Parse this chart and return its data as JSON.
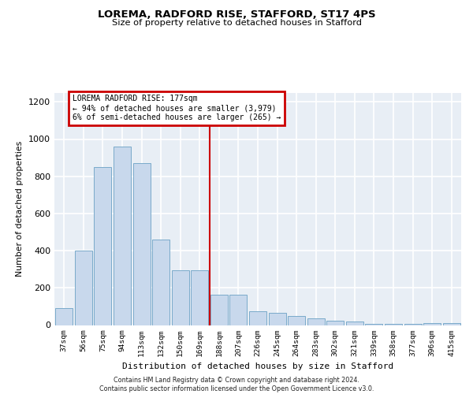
{
  "title": "LOREMA, RADFORD RISE, STAFFORD, ST17 4PS",
  "subtitle": "Size of property relative to detached houses in Stafford",
  "xlabel": "Distribution of detached houses by size in Stafford",
  "ylabel": "Number of detached properties",
  "categories": [
    "37sqm",
    "56sqm",
    "75sqm",
    "94sqm",
    "113sqm",
    "132sqm",
    "150sqm",
    "169sqm",
    "188sqm",
    "207sqm",
    "226sqm",
    "245sqm",
    "264sqm",
    "283sqm",
    "302sqm",
    "321sqm",
    "339sqm",
    "358sqm",
    "377sqm",
    "396sqm",
    "415sqm"
  ],
  "values": [
    90,
    400,
    850,
    960,
    870,
    460,
    295,
    295,
    165,
    165,
    75,
    65,
    50,
    35,
    25,
    18,
    5,
    5,
    5,
    10,
    10
  ],
  "bar_color": "#c8d8ec",
  "bar_edge_color": "#7aaaca",
  "vline_position": 7.5,
  "vline_color": "#cc0000",
  "annotation_text": "LOREMA RADFORD RISE: 177sqm\n← 94% of detached houses are smaller (3,979)\n6% of semi-detached houses are larger (265) →",
  "annotation_box_edgecolor": "#cc0000",
  "background_color": "#e8eef5",
  "grid_color": "#ffffff",
  "ylim": [
    0,
    1250
  ],
  "yticks": [
    0,
    200,
    400,
    600,
    800,
    1000,
    1200
  ],
  "footer_line1": "Contains HM Land Registry data © Crown copyright and database right 2024.",
  "footer_line2": "Contains public sector information licensed under the Open Government Licence v3.0."
}
